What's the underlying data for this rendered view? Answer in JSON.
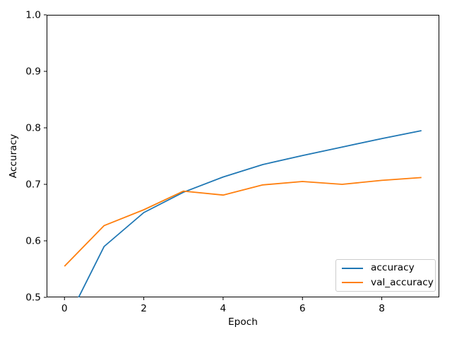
{
  "figure": {
    "background": "#ffffff",
    "axis_color": "#000000",
    "tick_label_color": "#000000"
  },
  "chart_data": {
    "type": "line",
    "title": "",
    "xlabel": "Epoch",
    "ylabel": "Accuracy",
    "x": [
      0,
      1,
      2,
      3,
      4,
      5,
      6,
      7,
      8,
      9
    ],
    "series": [
      {
        "name": "accuracy",
        "color": "#1f77b4",
        "values": [
          0.45,
          0.59,
          0.65,
          0.686,
          0.713,
          0.735,
          0.751,
          0.766,
          0.781,
          0.795
        ]
      },
      {
        "name": "val_accuracy",
        "color": "#ff7f0e",
        "values": [
          0.555,
          0.627,
          0.655,
          0.688,
          0.681,
          0.699,
          0.705,
          0.7,
          0.707,
          0.712
        ]
      }
    ],
    "xlim": [
      -0.45,
      9.45
    ],
    "ylim": [
      0.5,
      1.0
    ],
    "xticks": [
      0,
      2,
      4,
      6,
      8
    ],
    "xtick_labels": [
      "0",
      "2",
      "4",
      "6",
      "8"
    ],
    "yticks": [
      0.5,
      0.6,
      0.7,
      0.8,
      0.9,
      1.0
    ],
    "ytick_labels": [
      "0.5",
      "0.6",
      "0.7",
      "0.8",
      "0.9",
      "1.0"
    ],
    "grid": false,
    "legend": {
      "position": "lower right",
      "entries": [
        "accuracy",
        "val_accuracy"
      ]
    }
  }
}
